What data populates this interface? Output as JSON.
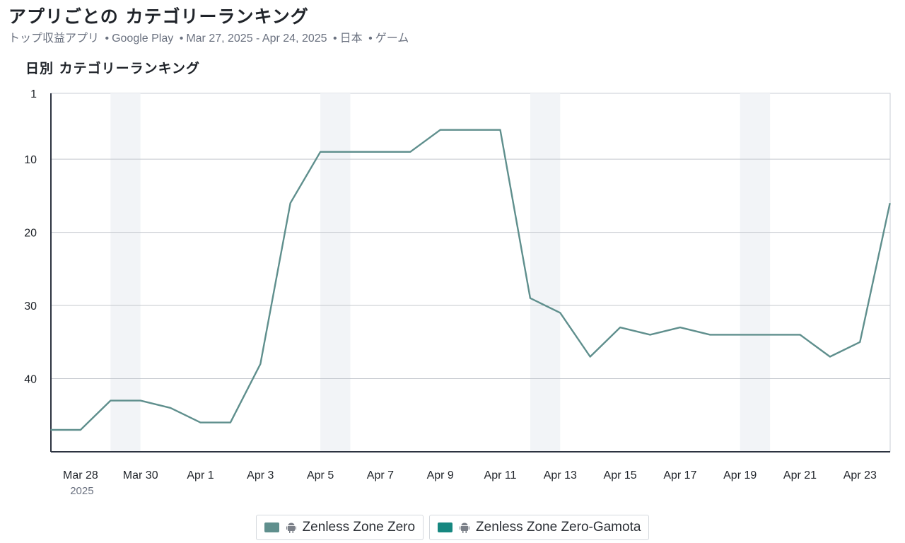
{
  "header": {
    "title": "アプリごとの カテゴリーランキング",
    "subtitle_metric": "トップ収益アプリ",
    "subtitle_store": "Google Play",
    "subtitle_range": "Mar 27, 2025 - Apr 24, 2025",
    "subtitle_country": "日本",
    "subtitle_category": "ゲーム",
    "separator": "•"
  },
  "chart_heading": "日別 カテゴリーランキング",
  "legend": [
    {
      "label": "Zenless Zone Zero",
      "color": "#5f8f8d",
      "icon": "android-icon"
    },
    {
      "label": "Zenless Zone Zero-Gamota",
      "color": "#168780",
      "icon": "android-icon"
    }
  ],
  "chart_data": {
    "type": "line",
    "title": "日別 カテゴリーランキング",
    "xlabel": "",
    "ylabel": "",
    "y_inverted": true,
    "ylim": [
      1,
      50
    ],
    "yticks": [
      1,
      10,
      20,
      30,
      40
    ],
    "grid": true,
    "legend_position": "bottom",
    "x_tick_labels": [
      "Mar 28",
      "Mar 30",
      "Apr 1",
      "Apr 3",
      "Apr 5",
      "Apr 7",
      "Apr 9",
      "Apr 11",
      "Apr 13",
      "Apr 15",
      "Apr 17",
      "Apr 19",
      "Apr 21",
      "Apr 23"
    ],
    "x_tick_year": "2025",
    "weekend_bands": [
      [
        "Mar 29",
        "Mar 30"
      ],
      [
        "Apr 5",
        "Apr 6"
      ],
      [
        "Apr 12",
        "Apr 13"
      ],
      [
        "Apr 19",
        "Apr 20"
      ]
    ],
    "x": [
      "Mar 27",
      "Mar 28",
      "Mar 29",
      "Mar 30",
      "Mar 31",
      "Apr 1",
      "Apr 2",
      "Apr 3",
      "Apr 4",
      "Apr 5",
      "Apr 6",
      "Apr 7",
      "Apr 8",
      "Apr 9",
      "Apr 10",
      "Apr 11",
      "Apr 12",
      "Apr 13",
      "Apr 14",
      "Apr 15",
      "Apr 16",
      "Apr 17",
      "Apr 18",
      "Apr 19",
      "Apr 20",
      "Apr 21",
      "Apr 22",
      "Apr 23",
      "Apr 24"
    ],
    "series": [
      {
        "name": "Zenless Zone Zero",
        "color": "#5f8f8d",
        "values": [
          47,
          47,
          43,
          43,
          44,
          46,
          46,
          38,
          16,
          9,
          9,
          9,
          9,
          6,
          6,
          6,
          29,
          31,
          37,
          33,
          34,
          33,
          34,
          34,
          34,
          34,
          37,
          35,
          16
        ]
      }
    ]
  }
}
